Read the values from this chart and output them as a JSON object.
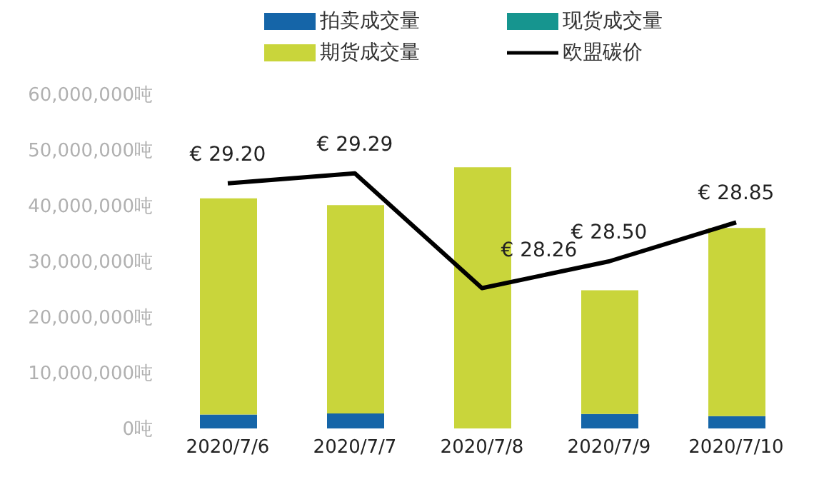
{
  "chart_data": {
    "type": "bar",
    "stacked": true,
    "categories": [
      "2020/7/6",
      "2020/7/7",
      "2020/7/8",
      "2020/7/9",
      "2020/7/10"
    ],
    "series": [
      {
        "name": "拍卖成交量",
        "color": "#1565a8",
        "values": [
          2500000,
          2700000,
          null,
          2600000,
          2200000
        ]
      },
      {
        "name": "现货成交量",
        "color": "#16958f",
        "values": [
          null,
          null,
          null,
          null,
          null
        ]
      },
      {
        "name": "期货成交量",
        "color": "#c9d53b",
        "values": [
          38800000,
          37400000,
          46900000,
          22200000,
          33800000
        ]
      },
      {
        "name": "欧盟碳价",
        "type": "line",
        "axis": "y2",
        "color": "#000000",
        "values": [
          29.2,
          29.29,
          28.26,
          28.5,
          28.85
        ],
        "value_labels": [
          "€ 29.20",
          "€ 29.29",
          "€ 28.26",
          "€ 28.50",
          "€ 28.85"
        ]
      }
    ],
    "ylim": [
      0,
      60000000
    ],
    "yticks": [
      {
        "value": 0,
        "label": "0吨"
      },
      {
        "value": 10000000,
        "label": "10,000,000吨"
      },
      {
        "value": 20000000,
        "label": "20,000,000吨"
      },
      {
        "value": 30000000,
        "label": "30,000,000吨"
      },
      {
        "value": 40000000,
        "label": "40,000,000吨"
      },
      {
        "value": 50000000,
        "label": "50,000,000吨"
      },
      {
        "value": 60000000,
        "label": "60,000,000吨"
      }
    ],
    "grid": false,
    "legend": "top",
    "marker": "none",
    "line_style": "solid"
  }
}
